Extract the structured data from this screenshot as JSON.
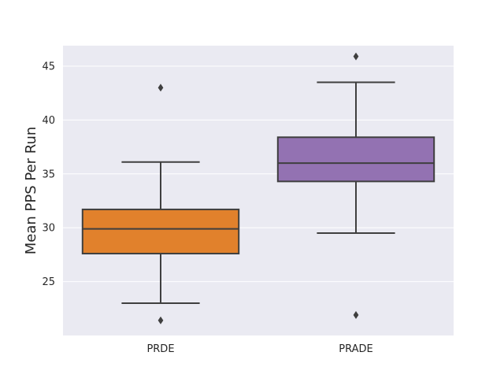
{
  "chart_data": {
    "type": "box",
    "title": "",
    "xlabel": "",
    "ylabel": "Mean PPS Per Run",
    "ylim": [
      20.0,
      46.9
    ],
    "yticks": [
      25,
      30,
      35,
      40,
      45
    ],
    "grid": true,
    "categories": [
      "PRDE",
      "PRADE"
    ],
    "boxes": [
      {
        "category": "PRDE",
        "color": "#e1812c",
        "whisker_low": 23.0,
        "q1": 27.6,
        "median": 29.9,
        "q3": 31.7,
        "whisker_high": 36.1,
        "outliers": [
          43.0,
          21.4
        ]
      },
      {
        "category": "PRADE",
        "color": "#9372b2",
        "whisker_low": 29.5,
        "q1": 34.3,
        "median": 36.0,
        "q3": 38.4,
        "whisker_high": 43.5,
        "outliers": [
          45.9,
          21.9
        ]
      }
    ],
    "colors": {
      "background": "#eaeaf2",
      "grid": "#ffffff",
      "lines": "#3f3f3f",
      "text": "#262626"
    }
  }
}
